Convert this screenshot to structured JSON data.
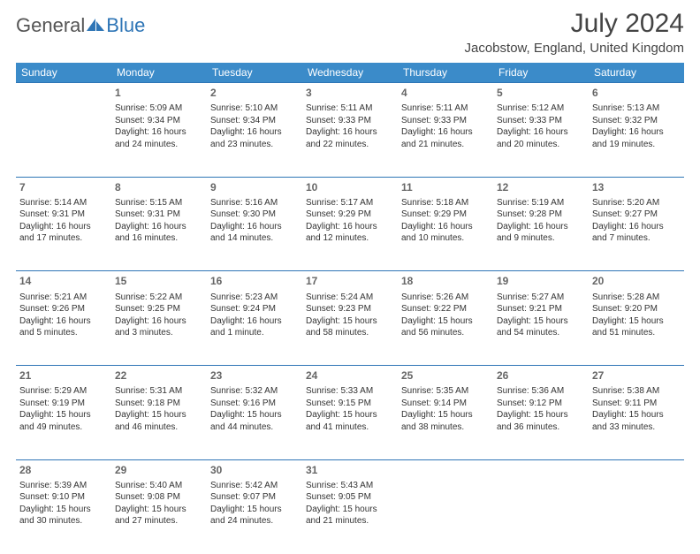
{
  "logo": {
    "general": "General",
    "blue": "Blue"
  },
  "title": "July 2024",
  "subtitle": "Jacobstow, England, United Kingdom",
  "colors": {
    "header_bg": "#3b8bc9",
    "divider": "#2e75b6"
  },
  "days_of_week": [
    "Sunday",
    "Monday",
    "Tuesday",
    "Wednesday",
    "Thursday",
    "Friday",
    "Saturday"
  ],
  "first_weekday_index": 1,
  "days": [
    {
      "n": 1,
      "sunrise": "5:09 AM",
      "sunset": "9:34 PM",
      "daylight": "16 hours and 24 minutes."
    },
    {
      "n": 2,
      "sunrise": "5:10 AM",
      "sunset": "9:34 PM",
      "daylight": "16 hours and 23 minutes."
    },
    {
      "n": 3,
      "sunrise": "5:11 AM",
      "sunset": "9:33 PM",
      "daylight": "16 hours and 22 minutes."
    },
    {
      "n": 4,
      "sunrise": "5:11 AM",
      "sunset": "9:33 PM",
      "daylight": "16 hours and 21 minutes."
    },
    {
      "n": 5,
      "sunrise": "5:12 AM",
      "sunset": "9:33 PM",
      "daylight": "16 hours and 20 minutes."
    },
    {
      "n": 6,
      "sunrise": "5:13 AM",
      "sunset": "9:32 PM",
      "daylight": "16 hours and 19 minutes."
    },
    {
      "n": 7,
      "sunrise": "5:14 AM",
      "sunset": "9:31 PM",
      "daylight": "16 hours and 17 minutes."
    },
    {
      "n": 8,
      "sunrise": "5:15 AM",
      "sunset": "9:31 PM",
      "daylight": "16 hours and 16 minutes."
    },
    {
      "n": 9,
      "sunrise": "5:16 AM",
      "sunset": "9:30 PM",
      "daylight": "16 hours and 14 minutes."
    },
    {
      "n": 10,
      "sunrise": "5:17 AM",
      "sunset": "9:29 PM",
      "daylight": "16 hours and 12 minutes."
    },
    {
      "n": 11,
      "sunrise": "5:18 AM",
      "sunset": "9:29 PM",
      "daylight": "16 hours and 10 minutes."
    },
    {
      "n": 12,
      "sunrise": "5:19 AM",
      "sunset": "9:28 PM",
      "daylight": "16 hours and 9 minutes."
    },
    {
      "n": 13,
      "sunrise": "5:20 AM",
      "sunset": "9:27 PM",
      "daylight": "16 hours and 7 minutes."
    },
    {
      "n": 14,
      "sunrise": "5:21 AM",
      "sunset": "9:26 PM",
      "daylight": "16 hours and 5 minutes."
    },
    {
      "n": 15,
      "sunrise": "5:22 AM",
      "sunset": "9:25 PM",
      "daylight": "16 hours and 3 minutes."
    },
    {
      "n": 16,
      "sunrise": "5:23 AM",
      "sunset": "9:24 PM",
      "daylight": "16 hours and 1 minute."
    },
    {
      "n": 17,
      "sunrise": "5:24 AM",
      "sunset": "9:23 PM",
      "daylight": "15 hours and 58 minutes."
    },
    {
      "n": 18,
      "sunrise": "5:26 AM",
      "sunset": "9:22 PM",
      "daylight": "15 hours and 56 minutes."
    },
    {
      "n": 19,
      "sunrise": "5:27 AM",
      "sunset": "9:21 PM",
      "daylight": "15 hours and 54 minutes."
    },
    {
      "n": 20,
      "sunrise": "5:28 AM",
      "sunset": "9:20 PM",
      "daylight": "15 hours and 51 minutes."
    },
    {
      "n": 21,
      "sunrise": "5:29 AM",
      "sunset": "9:19 PM",
      "daylight": "15 hours and 49 minutes."
    },
    {
      "n": 22,
      "sunrise": "5:31 AM",
      "sunset": "9:18 PM",
      "daylight": "15 hours and 46 minutes."
    },
    {
      "n": 23,
      "sunrise": "5:32 AM",
      "sunset": "9:16 PM",
      "daylight": "15 hours and 44 minutes."
    },
    {
      "n": 24,
      "sunrise": "5:33 AM",
      "sunset": "9:15 PM",
      "daylight": "15 hours and 41 minutes."
    },
    {
      "n": 25,
      "sunrise": "5:35 AM",
      "sunset": "9:14 PM",
      "daylight": "15 hours and 38 minutes."
    },
    {
      "n": 26,
      "sunrise": "5:36 AM",
      "sunset": "9:12 PM",
      "daylight": "15 hours and 36 minutes."
    },
    {
      "n": 27,
      "sunrise": "5:38 AM",
      "sunset": "9:11 PM",
      "daylight": "15 hours and 33 minutes."
    },
    {
      "n": 28,
      "sunrise": "5:39 AM",
      "sunset": "9:10 PM",
      "daylight": "15 hours and 30 minutes."
    },
    {
      "n": 29,
      "sunrise": "5:40 AM",
      "sunset": "9:08 PM",
      "daylight": "15 hours and 27 minutes."
    },
    {
      "n": 30,
      "sunrise": "5:42 AM",
      "sunset": "9:07 PM",
      "daylight": "15 hours and 24 minutes."
    },
    {
      "n": 31,
      "sunrise": "5:43 AM",
      "sunset": "9:05 PM",
      "daylight": "15 hours and 21 minutes."
    }
  ],
  "labels": {
    "sunrise": "Sunrise:",
    "sunset": "Sunset:",
    "daylight": "Daylight:"
  }
}
